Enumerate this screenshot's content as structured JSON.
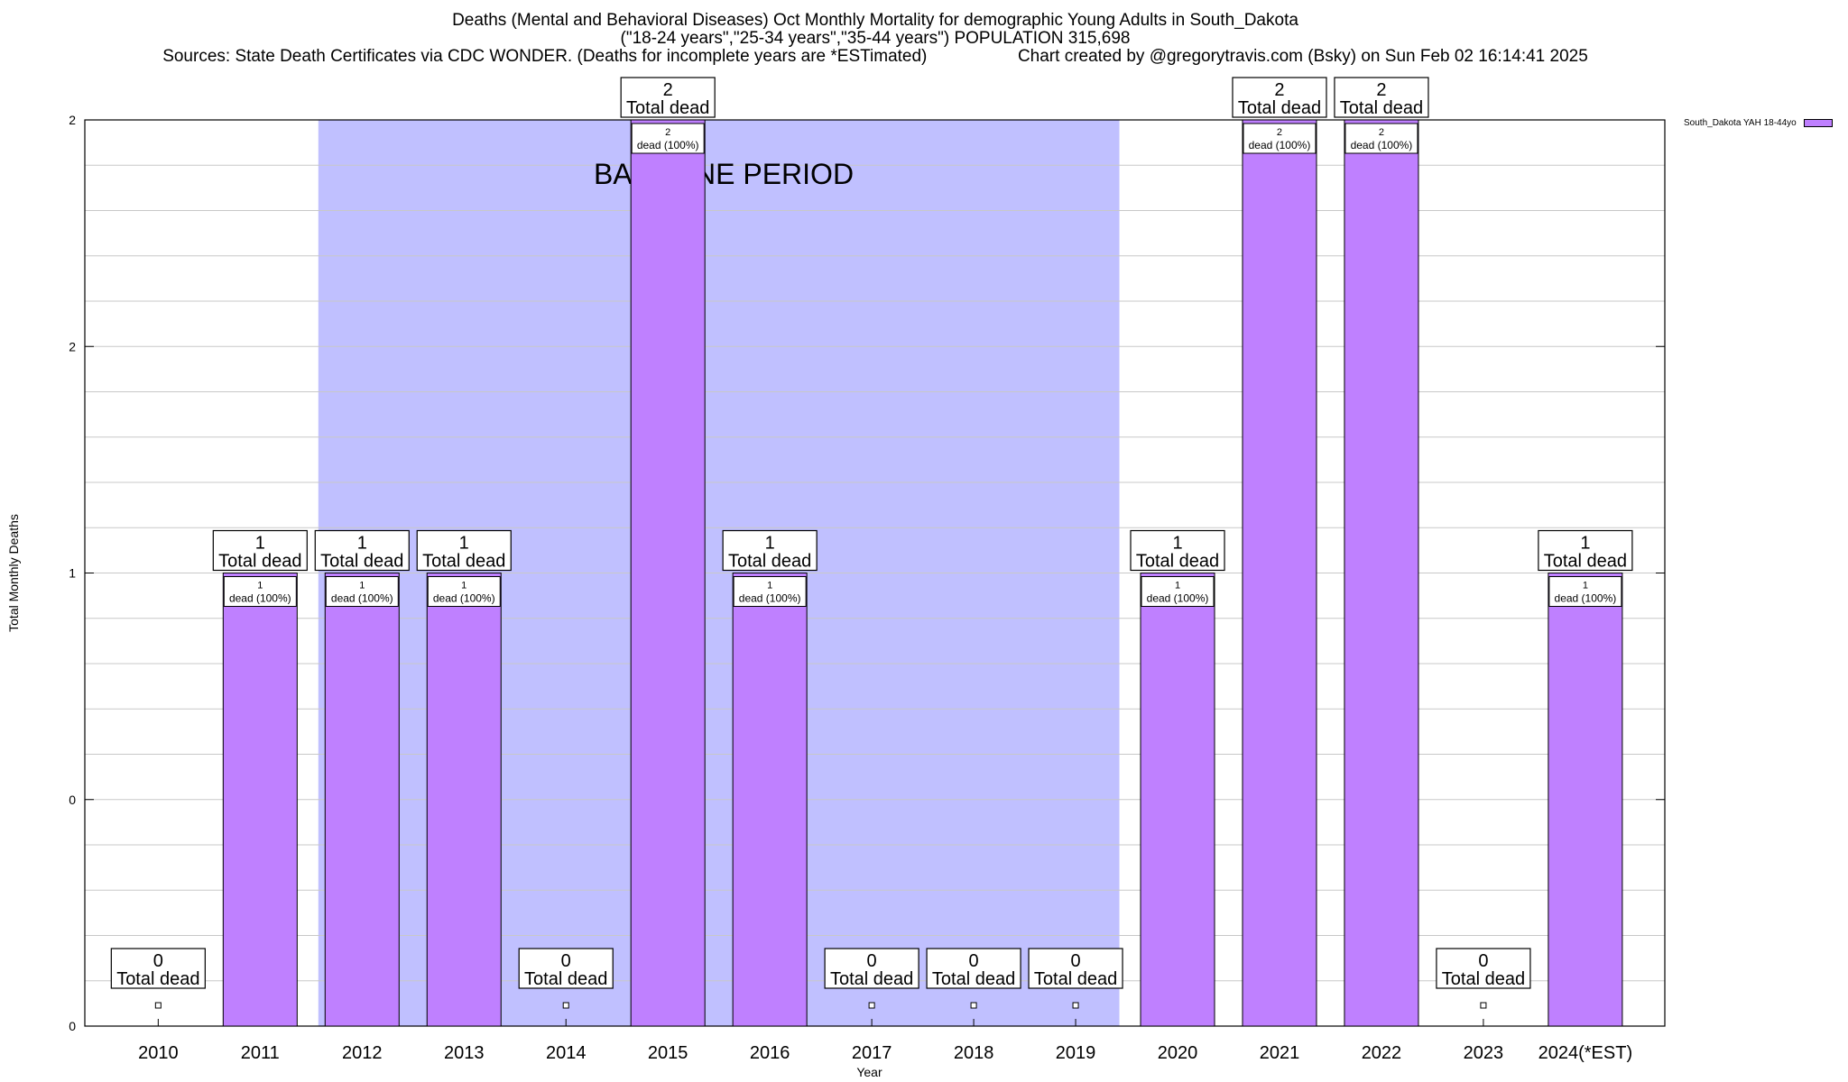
{
  "colors": {
    "bar": "#bf80ff",
    "baseline_band": "#c0c0ff",
    "grid": "#c8c8c8",
    "axis": "#000000"
  },
  "chart_data": {
    "type": "bar",
    "title": "Deaths (Mental and Behavioral Diseases) Oct Monthly Mortality for demographic Young Adults in South_Dakota",
    "subtitle": "(\"18-24 years\",\"25-34 years\",\"35-44 years\") POPULATION 315,698",
    "source": "Sources: State Death Certificates via CDC WONDER. (Deaths for incomplete years are *ESTimated)",
    "credit": "Chart created by @gregorytravis.com (Bsky) on Sun Feb 02 16:14:41 2025",
    "xlabel": "Year",
    "ylabel": "Total Monthly Deaths",
    "categories": [
      "2010",
      "2011",
      "2012",
      "2013",
      "2014",
      "2015",
      "2016",
      "2017",
      "2018",
      "2019",
      "2020",
      "2021",
      "2022",
      "2023",
      "2024(*EST)"
    ],
    "series": [
      {
        "name": "South_Dakota YAH 18-44yo",
        "values": [
          0,
          1,
          1,
          1,
          0,
          2,
          1,
          0,
          0,
          0,
          1,
          2,
          2,
          0,
          1
        ]
      }
    ],
    "ylim": [
      0,
      2
    ],
    "yticks": [
      {
        "value": 0,
        "label": "0"
      },
      {
        "value": 0.5,
        "label": "0"
      },
      {
        "value": 1,
        "label": "1"
      },
      {
        "value": 1.5,
        "label": "2"
      },
      {
        "value": 2,
        "label": "2"
      }
    ],
    "total_label_suffix": "Total dead",
    "bar_label_suffix": "dead (100%)",
    "baseline": {
      "label": "BASELINE PERIOD",
      "start_category": "2012",
      "end_category": "2019"
    },
    "grid": true,
    "legend_position": "top-right"
  }
}
